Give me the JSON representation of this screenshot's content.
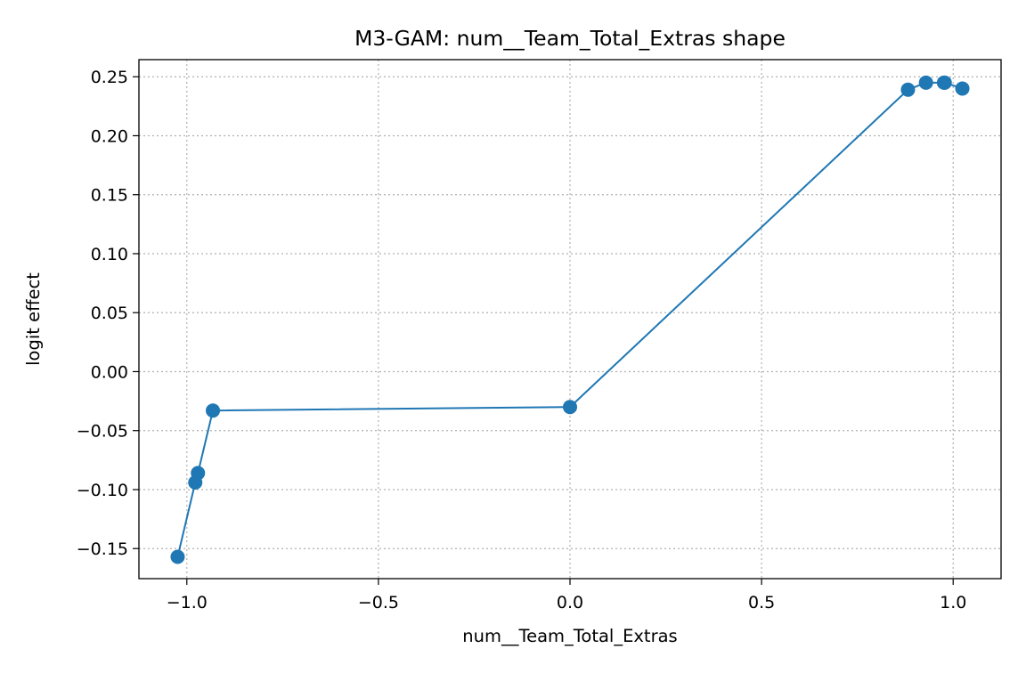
{
  "chart_data": {
    "type": "line",
    "title": "M3-GAM: num__Team_Total_Extras shape",
    "xlabel": "num__Team_Total_Extras",
    "ylabel": "logit effect",
    "xlim": [
      -1.125,
      1.125
    ],
    "ylim": [
      -0.1755,
      0.2645
    ],
    "x_ticks": [
      -1.0,
      -0.5,
      0.0,
      0.5,
      1.0
    ],
    "x_tick_labels": [
      "−1.0",
      "−0.5",
      "0.0",
      "0.5",
      "1.0"
    ],
    "y_ticks": [
      -0.15,
      -0.1,
      -0.05,
      0.0,
      0.05,
      0.1,
      0.15,
      0.2,
      0.25
    ],
    "y_tick_labels": [
      "−0.15",
      "−0.10",
      "−0.05",
      "0.00",
      "0.05",
      "0.10",
      "0.15",
      "0.20",
      "0.25"
    ],
    "grid": true,
    "legend": "none",
    "series": [
      {
        "color": "#1f77b4",
        "marker": "circle",
        "x": [
          -1.024,
          -0.978,
          -0.971,
          -0.932,
          0.0,
          0.882,
          0.929,
          0.976,
          0.978,
          1.024
        ],
        "y": [
          -0.157,
          -0.094,
          -0.086,
          -0.033,
          -0.03,
          0.239,
          0.245,
          0.245,
          0.245,
          0.24
        ]
      }
    ]
  }
}
